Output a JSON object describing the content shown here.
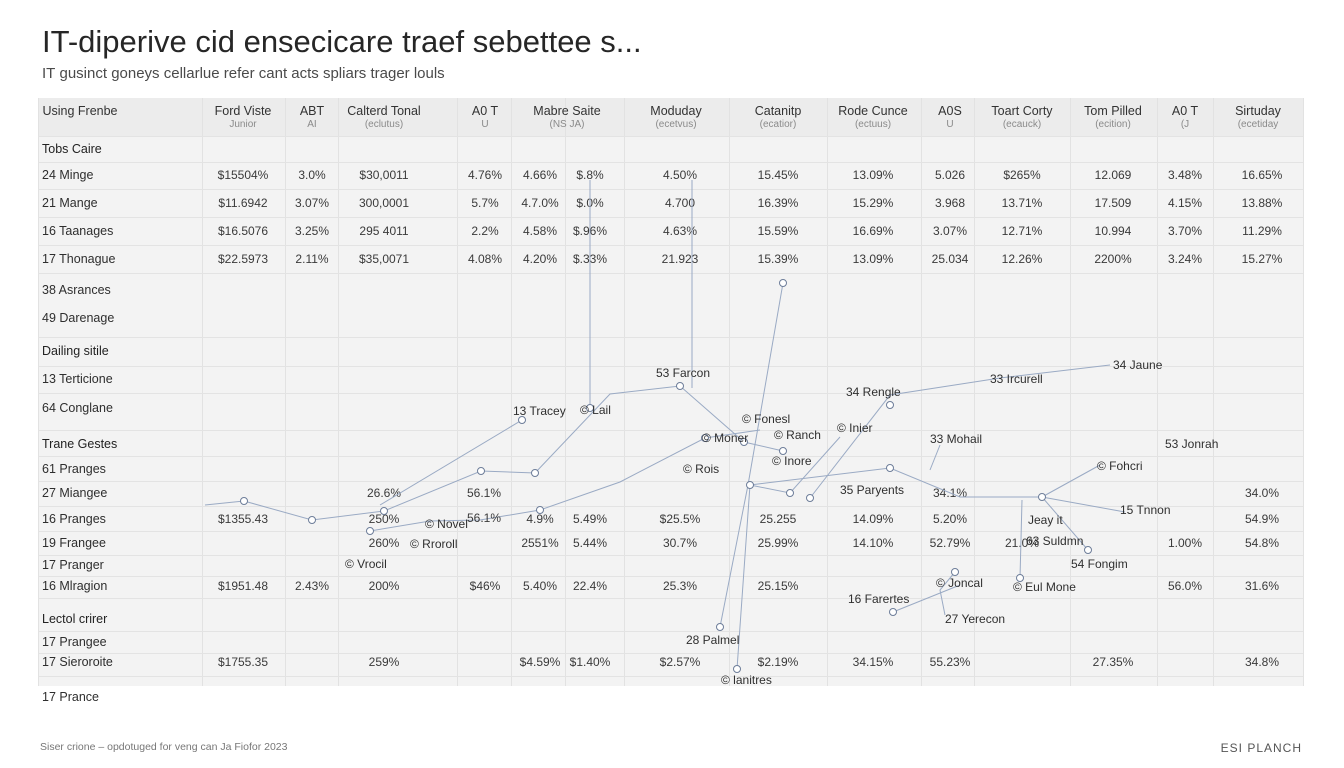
{
  "title": "IT-diperive cid ensecicare traef sebettee s...",
  "subtitle": "IT gusinct goneys cellarlue refer cant acts spliars trager louls",
  "footer": {
    "note": "Siser crione – opdotuged for veng can Ja Fiofor 2023",
    "brand": "ESI PLANCH"
  },
  "colors": {
    "line": "#9aaac4",
    "marker": "#6d7d99",
    "band": "#f3f3f3"
  },
  "chart_data": {
    "type": "table",
    "columns": [
      {
        "name": "Using Frenbe",
        "sub": ""
      },
      {
        "name": "Ford Viste",
        "sub": "Junior"
      },
      {
        "name": "ABT",
        "sub": "AI"
      },
      {
        "name": "Calterd Tonal",
        "sub": "(eclutus)"
      },
      {
        "name": "A0 T",
        "sub": "U"
      },
      {
        "name": "Mabre Saite",
        "sub": "(NS    JA)"
      },
      {
        "name": "Moduday",
        "sub": "(ecetvus)"
      },
      {
        "name": "Catanitp",
        "sub": "(ecatior)"
      },
      {
        "name": "Rode Cunce",
        "sub": "(ectuus)"
      },
      {
        "name": "A0S",
        "sub": "U"
      },
      {
        "name": "Toart Corty",
        "sub": "(ecauck)"
      },
      {
        "name": "Tom Pilled",
        "sub": "(ecition)"
      },
      {
        "name": "A0 T",
        "sub": "(J"
      },
      {
        "name": "Sirtuday",
        "sub": "(ecetiday"
      }
    ],
    "sections": [
      {
        "title": "Tobs Caire",
        "rows": [
          {
            "label": "24  Minge",
            "values": [
              "$15504%",
              "3.0%",
              "$30,0011",
              "4.76%",
              "4.66%",
              "$.8%",
              "4.50%",
              "15.45%",
              "13.09%",
              "5.026",
              "$265%",
              "12.069",
              "3.48%",
              "16.65%"
            ]
          },
          {
            "label": "21  Mange",
            "values": [
              "$11.6942",
              "3.07%",
              "300,0001",
              "5.7%",
              "4.7.0%",
              "$.0%",
              "4.700",
              "16.39%",
              "15.29%",
              "3.968",
              "13.71%",
              "17.509",
              "4.15%",
              "13.88%"
            ]
          },
          {
            "label": "16  Taanages",
            "values": [
              "$16.5076",
              "3.25%",
              "295 4011",
              "2.2%",
              "4.58%",
              "$.96%",
              "4.63%",
              "15.59%",
              "16.69%",
              "3.07%",
              "12.71%",
              "10.994",
              "3.70%",
              "11.29%"
            ]
          },
          {
            "label": "17  Thonague",
            "values": [
              "$22.5973",
              "2.11%",
              "$35,0071",
              "4.08%",
              "4.20%",
              "$.33%",
              "21.923",
              "15.39%",
              "13.09%",
              "25.034",
              "12.26%",
              "2200%",
              "3.24%",
              "15.27%"
            ]
          },
          {
            "label": "38  Asrances",
            "values": []
          },
          {
            "label": "49  Darenage",
            "values": []
          }
        ]
      },
      {
        "title": "Dailing sitile",
        "rows": [
          {
            "label": "13  Terticione",
            "values": []
          },
          {
            "label": "64  Conglane",
            "values": []
          }
        ]
      },
      {
        "title": "Trane Gestes",
        "rows": [
          {
            "label": "61  Pranges",
            "values": []
          },
          {
            "label": "27  Miangee",
            "values": [
              "",
              "",
              "26.6%",
              "",
              "",
              "",
              "",
              "",
              "",
              "34.1%",
              "",
              "",
              "",
              "34.0%"
            ]
          },
          {
            "label": "16  Pranges",
            "values": [
              "$1355.43",
              "",
              "250%",
              "",
              "4.9%",
              "5.49%",
              "$25.5%",
              "25.255",
              "14.09%",
              "5.20%",
              "",
              "",
              "",
              "54.9%"
            ]
          },
          {
            "label": "19  Frangee",
            "values": [
              "",
              "",
              "260%",
              "",
              "2551%",
              "5.44%",
              "30.7%",
              "25.99%",
              "14.10%",
              "52.79%",
              "21.0%",
              "",
              "1.00%",
              "54.8%"
            ]
          },
          {
            "label": "17  Pranger",
            "values": []
          },
          {
            "label": "16  Mlragion",
            "values": [
              "$1951.48",
              "2.43%",
              "200%",
              "$46%",
              "5.40%",
              "22.4%",
              "25.3%",
              "25.15%",
              "",
              "",
              "",
              "",
              "56.0%",
              "31.6%"
            ]
          }
        ]
      },
      {
        "title": "Lectol crirer",
        "rows": [
          {
            "label": "17  Prangee",
            "values": []
          },
          {
            "label": "17  Sieroroite",
            "values": [
              "$1755.35",
              "",
              "259%",
              "",
              "$4.59%",
              "$1.40%",
              "$2.57%",
              "$2.19%",
              "34.15%",
              "55.23%",
              "",
              "27.35%",
              "",
              "34.8%"
            ]
          },
          {
            "label": "17  Prance",
            "values": []
          }
        ]
      }
    ],
    "extra_values": [
      "56.1%",
      "56.1%"
    ],
    "annotations": [
      "53 Farcon",
      "34 Jaune",
      "33 Ircurell",
      "34 Rengle",
      "13 Tracey",
      "© Lail",
      "© Fonesl",
      "© Inier",
      "© Ranch",
      "© Moner",
      "33 Mohail",
      "53 Jonrah",
      "© Inore",
      "© Rois",
      "© Fohcri",
      "35 Paryents",
      "15 Tnnon",
      "Jeay it",
      "© Novel",
      "© Rroroll",
      "63 Suldmn",
      "54 Fongim",
      "© Vrocil",
      "© Joncal",
      "© Eul Mone",
      "16 Farertes",
      "27 Yerecon",
      "28 Palmel",
      "© lanitres"
    ]
  }
}
